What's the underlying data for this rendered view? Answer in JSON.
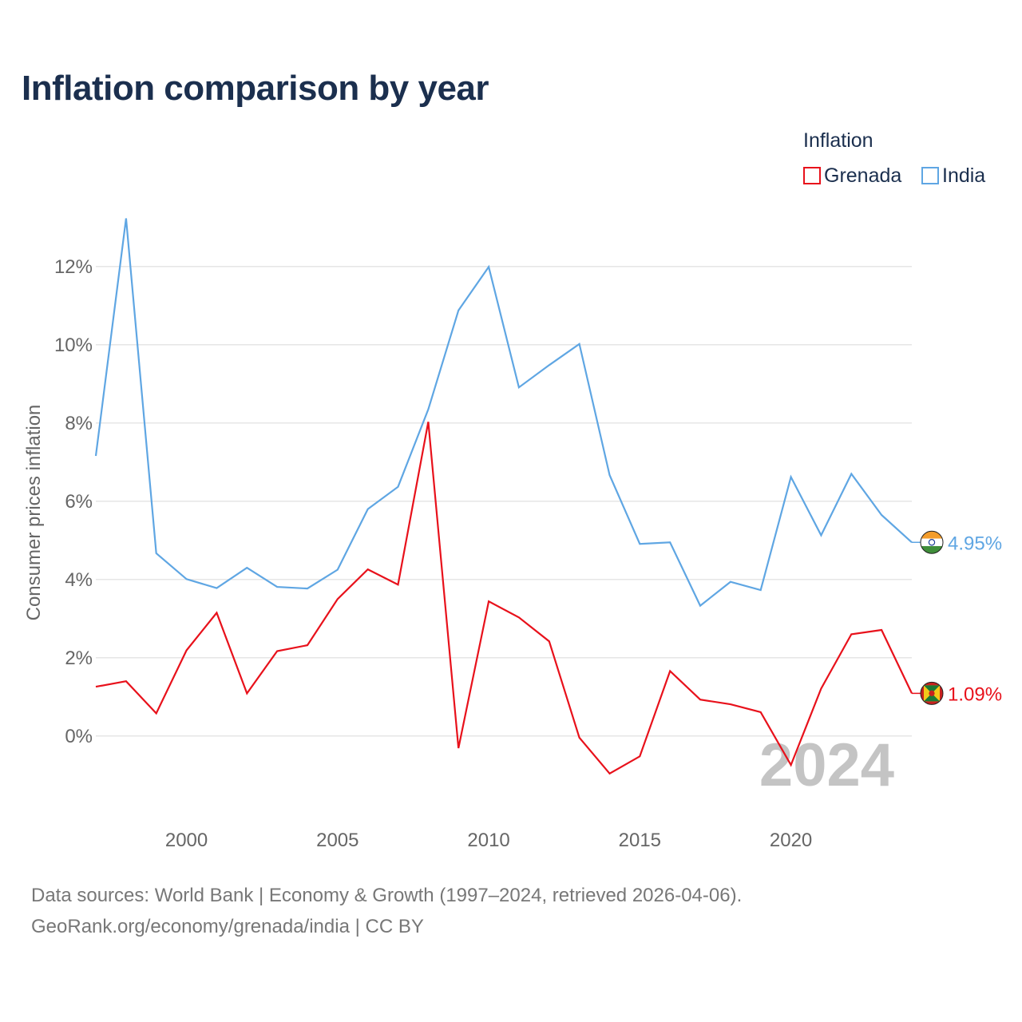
{
  "title": "Inflation comparison by year",
  "legend": {
    "title": "Inflation",
    "items": [
      {
        "label": "Grenada",
        "color": "#e8111b"
      },
      {
        "label": "India",
        "color": "#5fa6e3"
      }
    ]
  },
  "chart_data": {
    "type": "line",
    "title": "Inflation comparison by year",
    "xlabel": "",
    "ylabel": "Consumer prices inflation",
    "x": [
      1997,
      1998,
      1999,
      2000,
      2001,
      2002,
      2003,
      2004,
      2005,
      2006,
      2007,
      2008,
      2009,
      2010,
      2011,
      2012,
      2013,
      2014,
      2015,
      2016,
      2017,
      2018,
      2019,
      2020,
      2021,
      2022,
      2023,
      2024
    ],
    "xlim": [
      1997,
      2024
    ],
    "ylim": [
      -1.8,
      13.2
    ],
    "y_ticks": [
      0,
      2,
      4,
      6,
      8,
      10,
      12
    ],
    "y_tick_labels": [
      "0%",
      "2%",
      "4%",
      "6%",
      "8%",
      "10%",
      "12%"
    ],
    "x_ticks": [
      2000,
      2005,
      2010,
      2015,
      2020
    ],
    "x_tick_labels": [
      "2000",
      "2005",
      "2010",
      "2015",
      "2020"
    ],
    "grid": true,
    "year_watermark": "2024",
    "series": [
      {
        "name": "India",
        "color": "#5fa6e3",
        "flag_icon": "india-flag-icon",
        "end_label": "4.95%",
        "values": [
          7.16,
          13.23,
          4.67,
          4.01,
          3.78,
          4.3,
          3.81,
          3.77,
          4.25,
          5.8,
          6.37,
          8.35,
          10.88,
          11.99,
          8.91,
          9.48,
          10.02,
          6.67,
          4.91,
          4.95,
          3.33,
          3.94,
          3.73,
          6.62,
          5.13,
          6.7,
          5.65,
          4.95
        ]
      },
      {
        "name": "Grenada",
        "color": "#e8111b",
        "flag_icon": "grenada-flag-icon",
        "end_label": "1.09%",
        "values": [
          1.26,
          1.4,
          0.58,
          2.19,
          3.15,
          1.09,
          2.17,
          2.32,
          3.5,
          4.26,
          3.87,
          8.03,
          -0.31,
          3.44,
          3.03,
          2.42,
          -0.04,
          -0.96,
          -0.52,
          1.66,
          0.93,
          0.81,
          0.61,
          -0.74,
          1.21,
          2.6,
          2.71,
          1.09
        ]
      }
    ]
  },
  "source": {
    "line1": "Data sources: World Bank | Economy & Growth (1997–2024, retrieved 2026-04-06).",
    "line2": "GeoRank.org/economy/grenada/india | CC BY"
  }
}
